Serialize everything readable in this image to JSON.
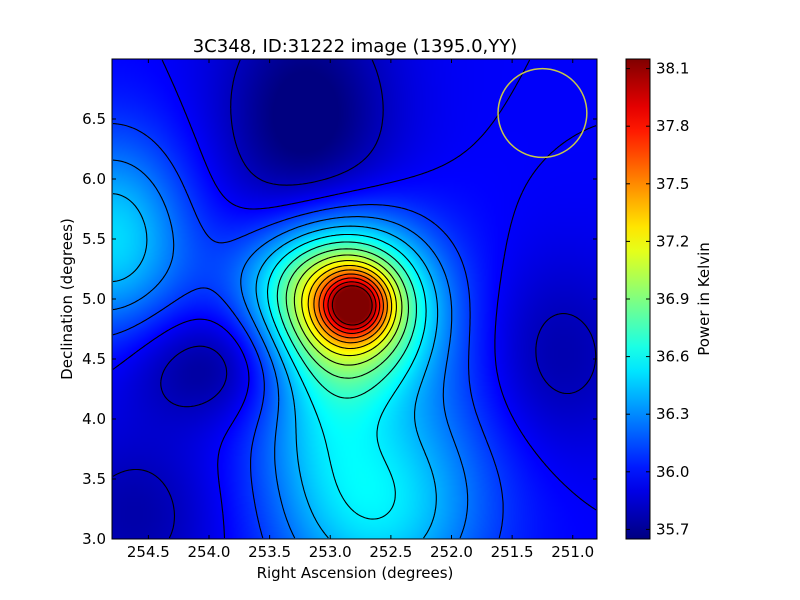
{
  "chart_data": {
    "type": "heatmap",
    "title": "3C348, ID:31222 image (1395.0,YY)",
    "xlabel": "Right Ascension (degrees)",
    "ylabel": "Declination (degrees)",
    "colorbar_label": "Power in Kelvin",
    "xlim": [
      254.8,
      250.8
    ],
    "ylim": [
      3.0,
      7.0
    ],
    "x_ticks": [
      "254.5",
      "254.0",
      "253.5",
      "253.0",
      "252.5",
      "252.0",
      "251.5",
      "251.0"
    ],
    "y_ticks": [
      "3.0",
      "3.5",
      "4.0",
      "4.5",
      "5.0",
      "5.5",
      "6.0",
      "6.5"
    ],
    "colorbar_range": [
      35.65,
      38.15
    ],
    "colorbar_ticks": [
      "35.7",
      "36.0",
      "36.3",
      "36.6",
      "36.9",
      "37.2",
      "37.5",
      "37.8",
      "38.1"
    ],
    "colormap": "jet",
    "contour_color": "#000000",
    "beam_circle": {
      "ra": 251.25,
      "dec": 6.55,
      "radius_deg": 0.37,
      "color": "#c8c84a"
    },
    "field": {
      "background": 35.95,
      "peak": {
        "ra": 252.8,
        "dec": 4.95,
        "value": 38.12
      },
      "features": [
        {
          "ra": 252.85,
          "dec": 4.95,
          "amp": 1.2,
          "sx": 0.45,
          "sy": 0.45
        },
        {
          "ra": 252.8,
          "dec": 4.95,
          "amp": 1.0,
          "sx": 0.18,
          "sy": 0.18
        },
        {
          "ra": 253.2,
          "dec": 5.2,
          "amp": 0.25,
          "sx": 0.5,
          "sy": 0.35
        },
        {
          "ra": 254.8,
          "dec": 5.5,
          "amp": 0.55,
          "sx": 0.45,
          "sy": 0.6
        },
        {
          "ra": 252.6,
          "dec": 3.2,
          "amp": 0.5,
          "sx": 0.6,
          "sy": 0.6
        },
        {
          "ra": 253.1,
          "dec": 4.2,
          "amp": 0.3,
          "sx": 0.4,
          "sy": 0.6
        },
        {
          "ra": 252.3,
          "dec": 4.3,
          "amp": 0.2,
          "sx": 0.8,
          "sy": 0.8
        },
        {
          "ra": 253.2,
          "dec": 6.5,
          "amp": -0.35,
          "sx": 0.5,
          "sy": 0.7
        },
        {
          "ra": 253.9,
          "dec": 4.45,
          "amp": -0.3,
          "sx": 0.6,
          "sy": 0.35
        },
        {
          "ra": 251.2,
          "dec": 4.5,
          "amp": -0.25,
          "sx": 0.5,
          "sy": 0.6
        },
        {
          "ra": 254.6,
          "dec": 3.2,
          "amp": -0.2,
          "sx": 0.5,
          "sy": 0.5
        }
      ],
      "contour_levels": [
        35.8,
        35.95,
        36.1,
        36.25,
        36.4,
        36.55,
        36.7,
        36.85,
        37.0,
        37.15,
        37.3,
        37.45,
        37.6,
        37.75,
        37.9,
        38.05
      ]
    }
  }
}
